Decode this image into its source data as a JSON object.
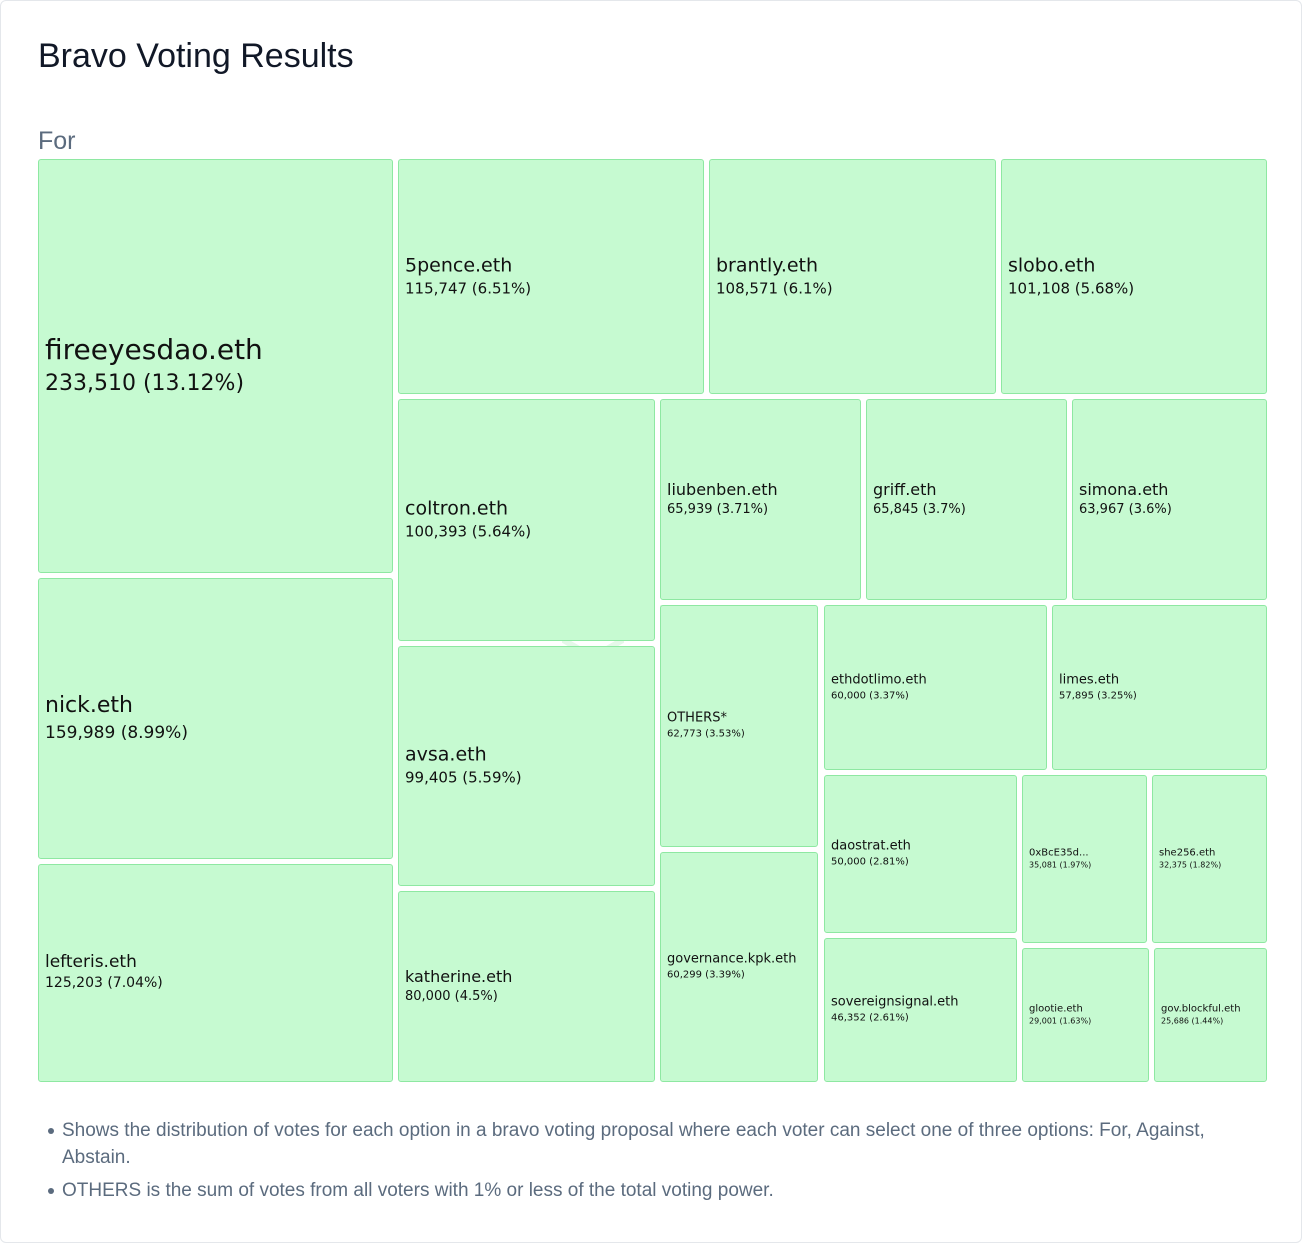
{
  "title": "Bravo Voting Results",
  "section_label": "For",
  "watermark": "dhive",
  "notes": [
    "Shows the distribution of votes for each option in a bravo voting proposal where each voter can select one of three options: For, Against, Abstain.",
    "OTHERS is the sum of votes from all voters with 1% or less of the total voting power."
  ],
  "colors": {
    "tile_fill": "#c6fad1",
    "tile_border": "#8ee8a2"
  },
  "chart_data": {
    "type": "treemap",
    "category": "For",
    "items": [
      {
        "name": "fireeyesdao.eth",
        "value": 233510,
        "label": "233,510 (13.12%)"
      },
      {
        "name": "nick.eth",
        "value": 159989,
        "label": "159,989 (8.99%)"
      },
      {
        "name": "lefteris.eth",
        "value": 125203,
        "label": "125,203 (7.04%)"
      },
      {
        "name": "5pence.eth",
        "value": 115747,
        "label": "115,747 (6.51%)"
      },
      {
        "name": "brantly.eth",
        "value": 108571,
        "label": "108,571 (6.1%)"
      },
      {
        "name": "slobo.eth",
        "value": 101108,
        "label": "101,108 (5.68%)"
      },
      {
        "name": "coltron.eth",
        "value": 100393,
        "label": "100,393 (5.64%)"
      },
      {
        "name": "avsa.eth",
        "value": 99405,
        "label": "99,405 (5.59%)"
      },
      {
        "name": "katherine.eth",
        "value": 80000,
        "label": "80,000 (4.5%)"
      },
      {
        "name": "liubenben.eth",
        "value": 65939,
        "label": "65,939 (3.71%)"
      },
      {
        "name": "griff.eth",
        "value": 65845,
        "label": "65,845 (3.7%)"
      },
      {
        "name": "simona.eth",
        "value": 63967,
        "label": "63,967 (3.6%)"
      },
      {
        "name": "OTHERS*",
        "value": 62773,
        "label": "62,773 (3.53%)"
      },
      {
        "name": "ethdotlimo.eth",
        "value": 60000,
        "label": "60,000 (3.37%)"
      },
      {
        "name": "limes.eth",
        "value": 57895,
        "label": "57,895 (3.25%)"
      },
      {
        "name": "governance.kpk.eth",
        "value": 60299,
        "label": "60,299 (3.39%)"
      },
      {
        "name": "daostrat.eth",
        "value": 50000,
        "label": "50,000 (2.81%)"
      },
      {
        "name": "0xBcE35d...",
        "value": 35081,
        "label": "35,081 (1.97%)"
      },
      {
        "name": "she256.eth",
        "value": 32375,
        "label": "32,375 (1.82%)"
      },
      {
        "name": "sovereignsignal.eth",
        "value": 46352,
        "label": "46,352 (2.61%)"
      },
      {
        "name": "glootie.eth",
        "value": 29001,
        "label": "29,001 (1.63%)"
      },
      {
        "name": "gov.blockful.eth",
        "value": 25686,
        "label": "25,686 (1.44%)"
      }
    ]
  }
}
